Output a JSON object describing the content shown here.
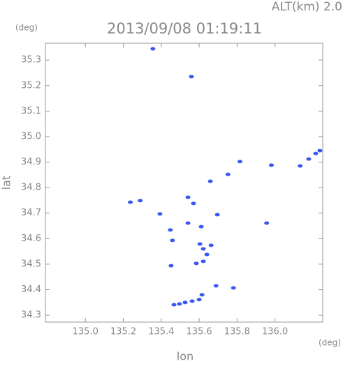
{
  "chart_data": {
    "type": "scatter",
    "title": "2013/09/08 01:19:11",
    "subtitle": "ALT(km) 2.0",
    "y_unit": "(deg)",
    "x_unit": "(deg)",
    "xlabel": "lon",
    "ylabel": "lat",
    "color": "#3a57f0",
    "x": [
      135.356,
      135.559,
      135.815,
      135.981,
      136.133,
      136.178,
      136.215,
      136.237,
      135.659,
      135.752,
      135.237,
      135.289,
      135.393,
      135.448,
      135.459,
      135.452,
      135.541,
      135.57,
      135.541,
      135.611,
      135.696,
      135.604,
      135.622,
      135.641,
      135.585,
      135.622,
      135.663,
      135.956,
      135.689,
      135.615,
      135.781,
      135.467,
      135.496,
      135.526,
      135.563,
      135.6
    ],
    "values": [
      35.344,
      35.235,
      34.902,
      34.888,
      34.885,
      34.912,
      34.934,
      34.945,
      34.825,
      34.852,
      34.743,
      34.749,
      34.697,
      34.634,
      34.593,
      34.494,
      34.762,
      34.738,
      34.661,
      34.647,
      34.694,
      34.579,
      34.56,
      34.538,
      34.503,
      34.511,
      34.574,
      34.661,
      34.415,
      34.38,
      34.407,
      34.341,
      34.344,
      34.35,
      34.355,
      34.361
    ],
    "xlim": [
      134.789,
      136.252
    ],
    "ylim": [
      34.273,
      35.366
    ],
    "xticks": [
      {
        "value": 135,
        "label": "135.0"
      },
      135.2,
      135.4,
      135.6,
      135.8,
      {
        "value": 136,
        "label": "136.0"
      }
    ],
    "yticks": [
      34.3,
      34.4,
      34.5,
      34.6,
      34.7,
      34.8,
      34.9,
      {
        "value": 35,
        "label": "35.0"
      },
      35.1,
      35.2,
      35.3
    ]
  }
}
